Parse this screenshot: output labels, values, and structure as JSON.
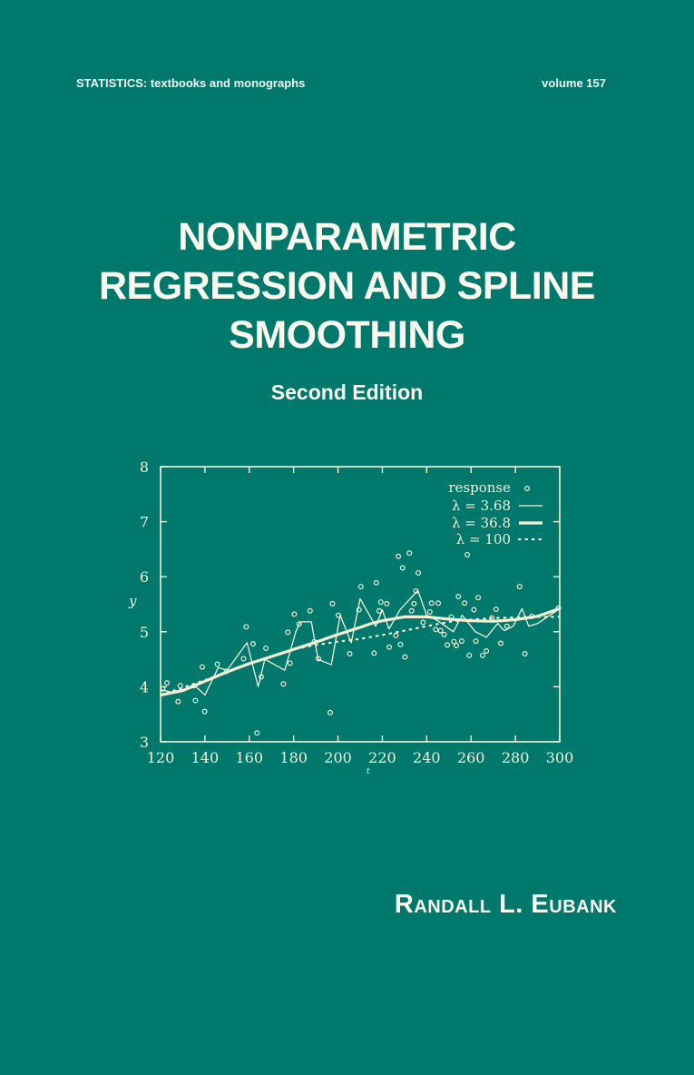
{
  "cover": {
    "series": "STATISTICS:  textbooks and monographs",
    "volume": "volume 157",
    "title_lines": [
      "NONPARAMETRIC",
      "REGRESSION AND SPLINE",
      "SMOOTHING"
    ],
    "edition": "Second Edition",
    "author": "Randall L. Eubank"
  },
  "colors": {
    "background": "#00786c",
    "foreground": "#f6efd8"
  },
  "chart_data": {
    "type": "scatter",
    "title": "",
    "xlabel": "t",
    "ylabel": "y",
    "xlim": [
      120,
      300
    ],
    "ylim": [
      3,
      8
    ],
    "xticks": [
      "120",
      "140",
      "160",
      "180",
      "200",
      "220",
      "240",
      "260",
      "280",
      "300"
    ],
    "yticks": [
      "3",
      "4",
      "5",
      "6",
      "7",
      "8"
    ],
    "grid": false,
    "legend_position": "top-right",
    "legend": [
      "response",
      "λ = 3.68",
      "λ = 36.8",
      "λ = 100"
    ],
    "response": {
      "x": [
        121,
        122.9,
        127.9,
        128.9,
        135.7,
        135,
        138.8,
        139.9,
        145.6,
        149.7,
        157.4,
        158.6,
        161.7,
        163.5,
        165.4,
        167.5,
        175.4,
        177.4,
        178.4,
        180.3,
        182.5,
        187.4,
        189.3,
        191.2,
        196.5,
        197.5,
        200.2,
        205.3,
        209.5,
        210.3,
        216.3,
        217.3,
        219.3,
        218.6,
        222,
        223.1,
        226.1,
        227.2,
        228.2,
        229.1,
        230.2,
        232.2,
        233.2,
        234.3,
        235.2,
        236.2,
        238.4,
        241.4,
        242.2,
        244.1,
        245.2,
        246.3,
        247.9,
        249.3,
        251.1,
        252.3,
        253.4,
        254.3,
        255.8,
        257.1,
        258.3,
        259.2,
        261.3,
        263.2,
        262.2,
        265.2,
        266.9,
        269.4,
        271.3,
        273.4,
        276.2,
        281.9,
        284.3,
        287.4,
        299.4
      ],
      "y": [
        3.96,
        4.07,
        3.73,
        4.02,
        3.75,
        4.02,
        4.36,
        3.55,
        4.41,
        4.28,
        4.51,
        5.09,
        4.78,
        3.16,
        4.18,
        4.7,
        4.05,
        4.99,
        4.43,
        5.32,
        5.14,
        5.38,
        4.82,
        4.51,
        3.53,
        5.51,
        5.3,
        4.6,
        5.4,
        5.82,
        4.61,
        5.89,
        5.54,
        5.38,
        5.51,
        4.72,
        4.93,
        6.37,
        4.77,
        6.16,
        4.54,
        6.43,
        5.38,
        5.51,
        5.74,
        6.07,
        5.17,
        5.36,
        5.52,
        5.04,
        5.52,
        5.02,
        4.95,
        4.76,
        5.27,
        4.82,
        4.75,
        5.64,
        4.83,
        5.52,
        6.4,
        4.57,
        5.4,
        5.62,
        4.83,
        4.57,
        4.65,
        5.25,
        5.41,
        4.79,
        5.1,
        5.82,
        4.6,
        5.28,
        5.43
      ]
    },
    "series": [
      {
        "name": "λ = 3.68",
        "style": "thin",
        "x": [
          120,
          125,
          130,
          136,
          140,
          146,
          150,
          159,
          164,
          167,
          176,
          181,
          183,
          188,
          191,
          197,
          201,
          206,
          210,
          217,
          220,
          223,
          228,
          236,
          240,
          245,
          252,
          256,
          262,
          267,
          272,
          275,
          279,
          283,
          286,
          290,
          300
        ],
        "y": [
          3.95,
          3.9,
          3.95,
          4.0,
          3.85,
          4.35,
          4.3,
          4.8,
          4.0,
          4.5,
          4.3,
          5.0,
          5.18,
          5.18,
          4.5,
          4.4,
          5.3,
          4.8,
          5.6,
          5.1,
          5.4,
          5.05,
          5.4,
          5.75,
          5.3,
          5.2,
          5.0,
          5.3,
          5.0,
          4.9,
          5.15,
          5.02,
          5.1,
          5.42,
          5.1,
          5.15,
          5.42
        ]
      },
      {
        "name": "λ = 36.8",
        "style": "thick",
        "x": [
          120,
          130,
          140,
          150,
          160,
          170,
          180,
          190,
          200,
          210,
          215,
          220,
          230,
          240,
          245,
          250,
          260,
          270,
          280,
          290,
          300
        ],
        "y": [
          3.85,
          3.93,
          4.1,
          4.27,
          4.42,
          4.55,
          4.68,
          4.81,
          4.95,
          5.08,
          5.15,
          5.2,
          5.27,
          5.27,
          5.25,
          5.23,
          5.2,
          5.19,
          5.22,
          5.28,
          5.42
        ]
      },
      {
        "name": "λ = 100",
        "style": "dotted",
        "x": [
          120,
          140,
          160,
          180,
          190,
          200,
          210,
          220,
          230,
          240,
          250,
          260,
          270,
          280,
          290,
          300
        ],
        "y": [
          3.85,
          4.12,
          4.42,
          4.68,
          4.76,
          4.82,
          4.87,
          4.94,
          5.02,
          5.1,
          5.18,
          5.22,
          5.25,
          5.26,
          5.27,
          5.27
        ]
      }
    ]
  }
}
